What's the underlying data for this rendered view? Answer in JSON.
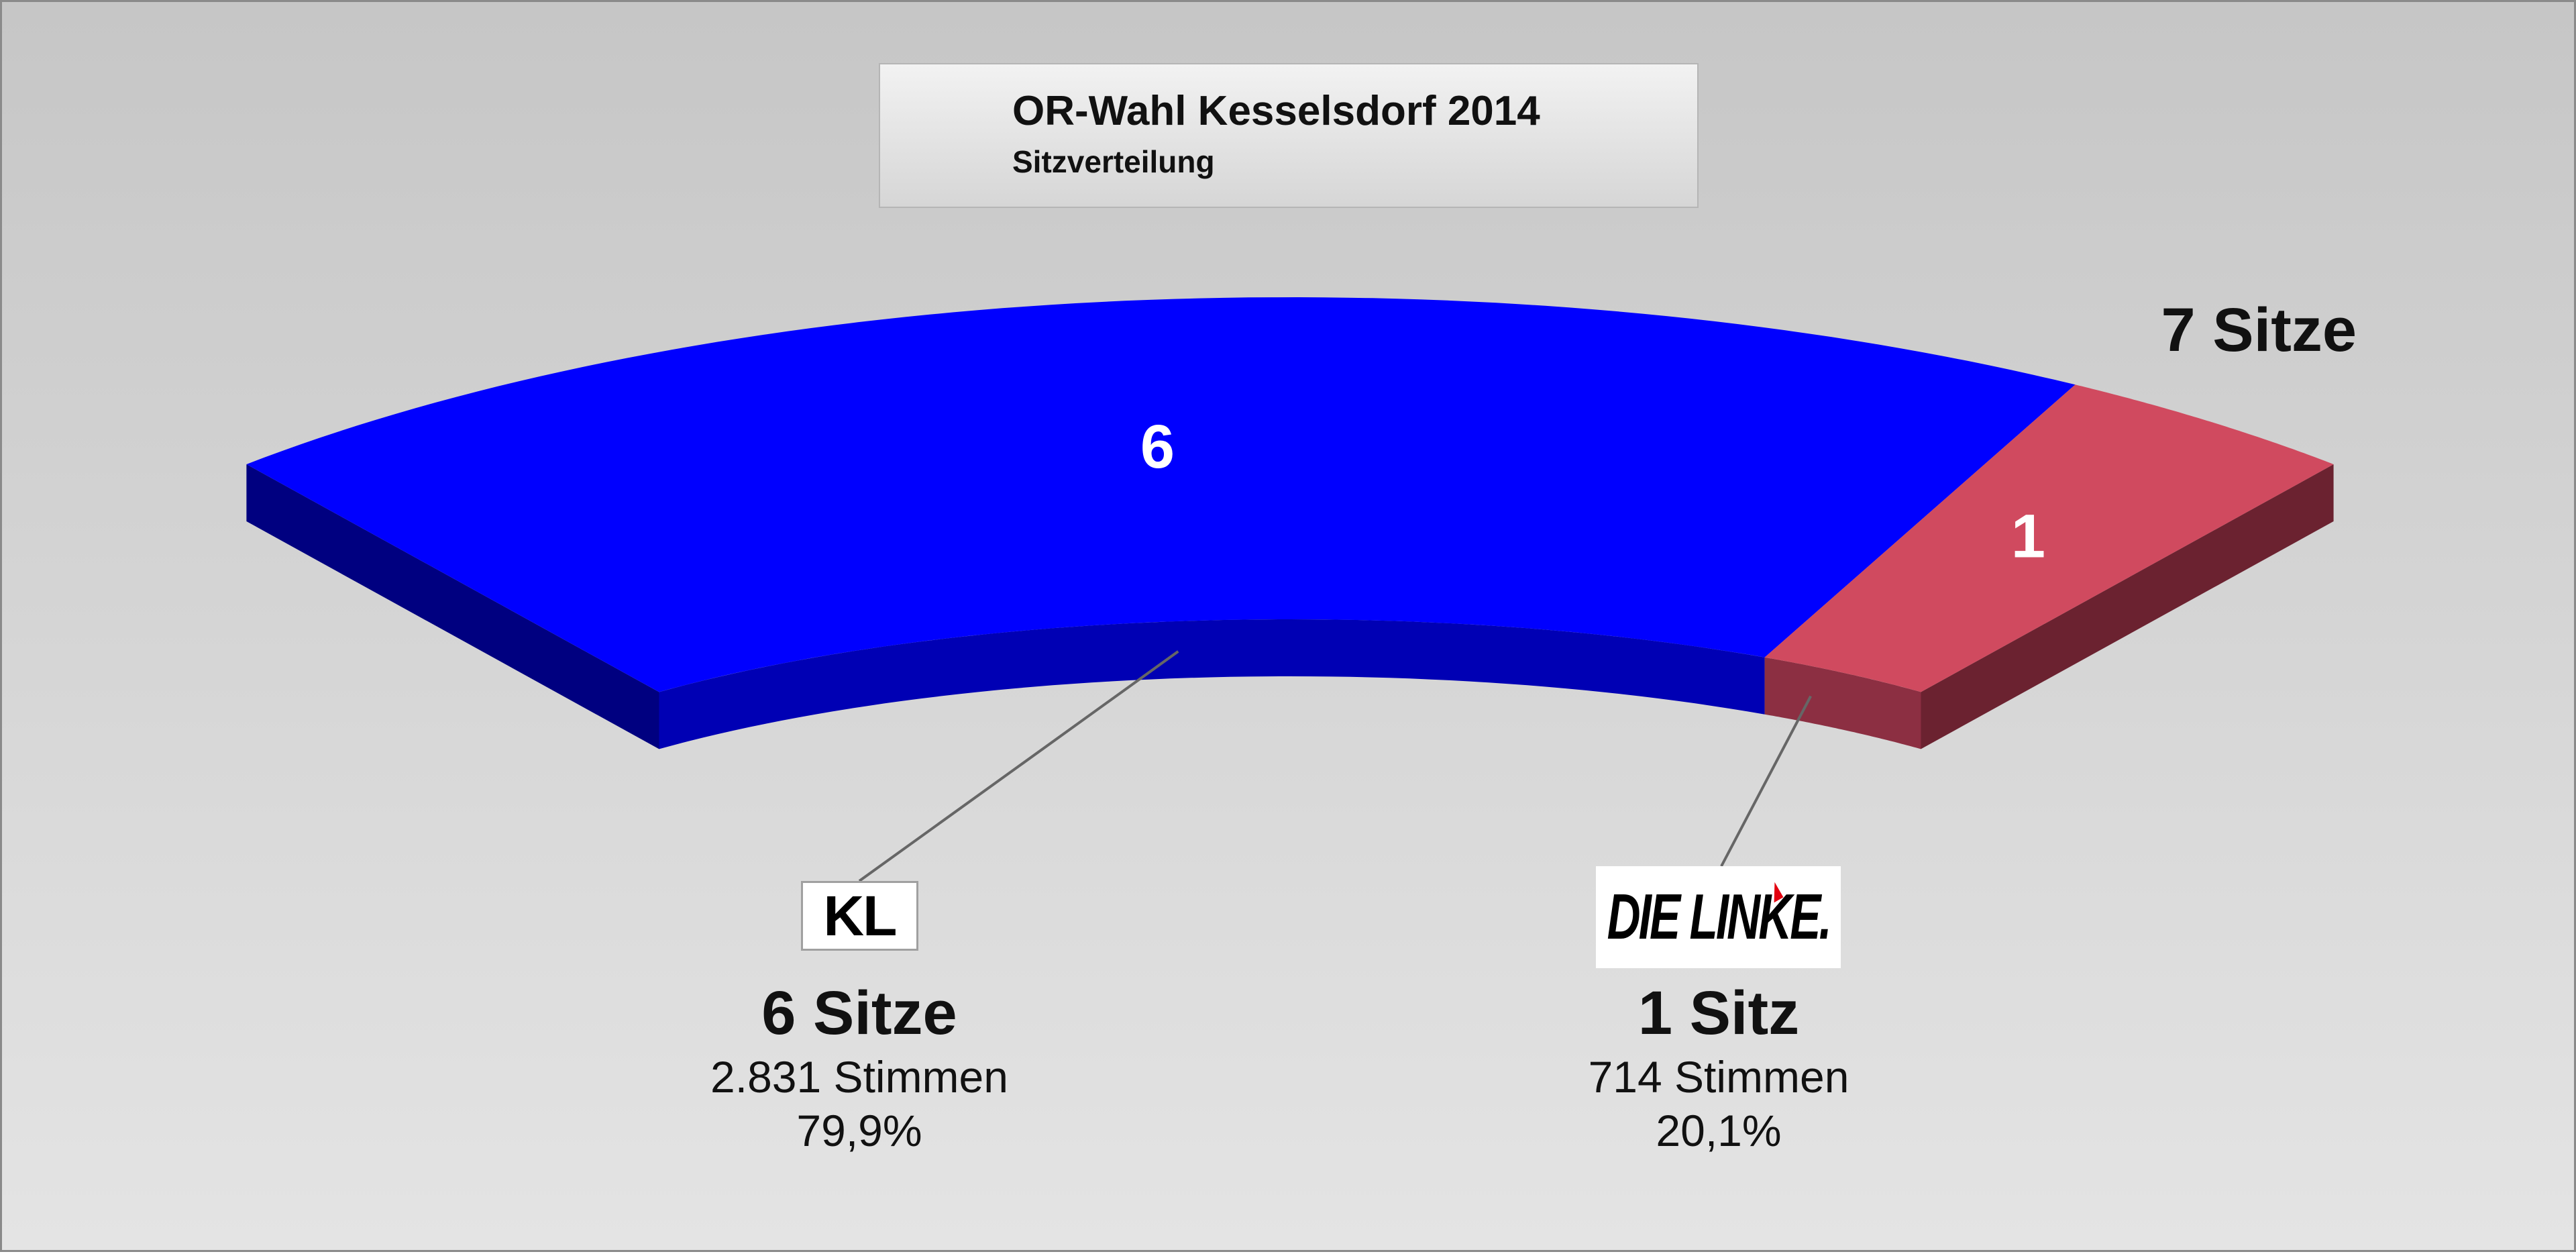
{
  "chart_data": {
    "type": "parliament-arc",
    "title": "OR-Wahl Kesselsdorf 2014",
    "subtitle": "Sitzverteilung",
    "total_label": "7 Sitze",
    "total_seats": 7,
    "segments": [
      {
        "party": "KL",
        "seats": 6,
        "seats_label": "6 Sitze",
        "votes_label": "2.831 Stimmen",
        "percent_label": "79,9%",
        "color": "#0000ff",
        "side_color": "#0000b4",
        "outer_color": "#000080"
      },
      {
        "party": "DIE LINKE.",
        "seats": 1,
        "seats_label": "1 Sitz",
        "votes_label": "714 Stimmen",
        "percent_label": "20,1%",
        "color": "#d04a5f",
        "side_color": "#8c2f42",
        "outer_color": "#6b2230"
      }
    ]
  }
}
